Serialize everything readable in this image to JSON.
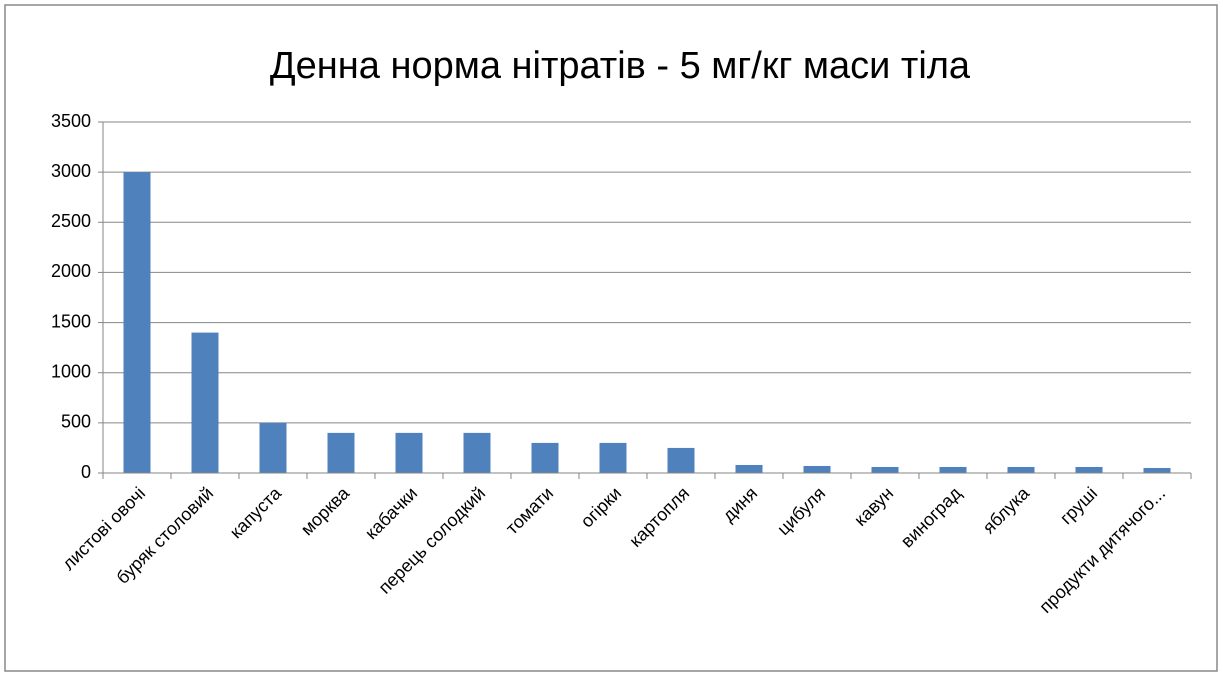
{
  "chart_data": {
    "type": "bar",
    "title": "Денна норма нітратів - 5 мг/кг маси тіла",
    "categories": [
      "листові овочі",
      "буряк столовий",
      "капуста",
      "морква",
      "кабачки",
      "перець солодкий",
      "томати",
      "огірки",
      "картопля",
      "диня",
      "цибуля",
      "кавун",
      "виноград",
      "яблука",
      "груші",
      "продукти дитячого..."
    ],
    "values": [
      3000,
      1400,
      500,
      400,
      400,
      400,
      300,
      300,
      250,
      80,
      70,
      60,
      60,
      60,
      60,
      50
    ],
    "color": "#4f81bd",
    "ylim": [
      0,
      3500
    ],
    "yticks": [
      0,
      500,
      1000,
      1500,
      2000,
      2500,
      3000,
      3500
    ],
    "grid": true
  }
}
